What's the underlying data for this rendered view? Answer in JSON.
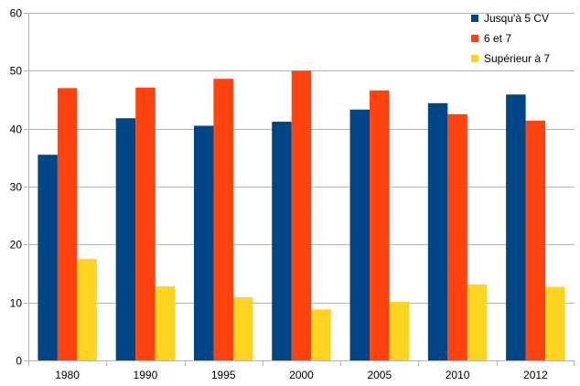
{
  "chart_data": {
    "type": "bar",
    "title": "",
    "xlabel": "",
    "ylabel": "",
    "categories": [
      "1980",
      "1990",
      "1995",
      "2000",
      "2005",
      "2010",
      "2012"
    ],
    "series": [
      {
        "name": "Jusqu'à 5 CV",
        "color": "#004586",
        "values": [
          35.5,
          41.8,
          40.5,
          41.2,
          43.3,
          44.4,
          45.9
        ]
      },
      {
        "name": "6 et 7",
        "color": "#ff420e",
        "values": [
          47.0,
          47.1,
          48.6,
          50.0,
          46.6,
          42.5,
          41.4
        ]
      },
      {
        "name": "Supérieur à 7",
        "color": "#ffd320",
        "values": [
          17.5,
          12.8,
          10.9,
          8.8,
          10.1,
          13.1,
          12.7
        ]
      }
    ],
    "yticks": [
      "0",
      "10",
      "20",
      "30",
      "40",
      "50",
      "60"
    ],
    "ylim": [
      0,
      60
    ],
    "grid": "horizontal",
    "legend_position": "top-right"
  }
}
